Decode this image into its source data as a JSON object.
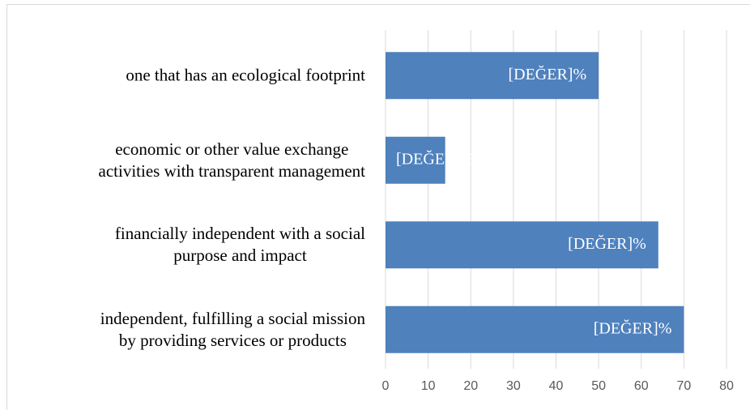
{
  "chart_data": {
    "type": "bar",
    "orientation": "horizontal",
    "categories": [
      "one that has an ecological footprint",
      "economic or other value exchange\nactivities with transparent management",
      "financially independent with a social\npurpose and impact",
      "independent, fulfilling a social mission\nby providing services or products"
    ],
    "values": [
      50,
      14,
      64,
      70
    ],
    "value_labels": [
      "[DEĞER]%",
      "[DEĞER]%",
      "[DEĞER]%",
      "[DEĞER]%"
    ],
    "color": "#4f81bd",
    "xlim": [
      0,
      80
    ],
    "xticks": [
      0,
      10,
      20,
      30,
      40,
      50,
      60,
      70,
      80
    ],
    "grid": true
  }
}
